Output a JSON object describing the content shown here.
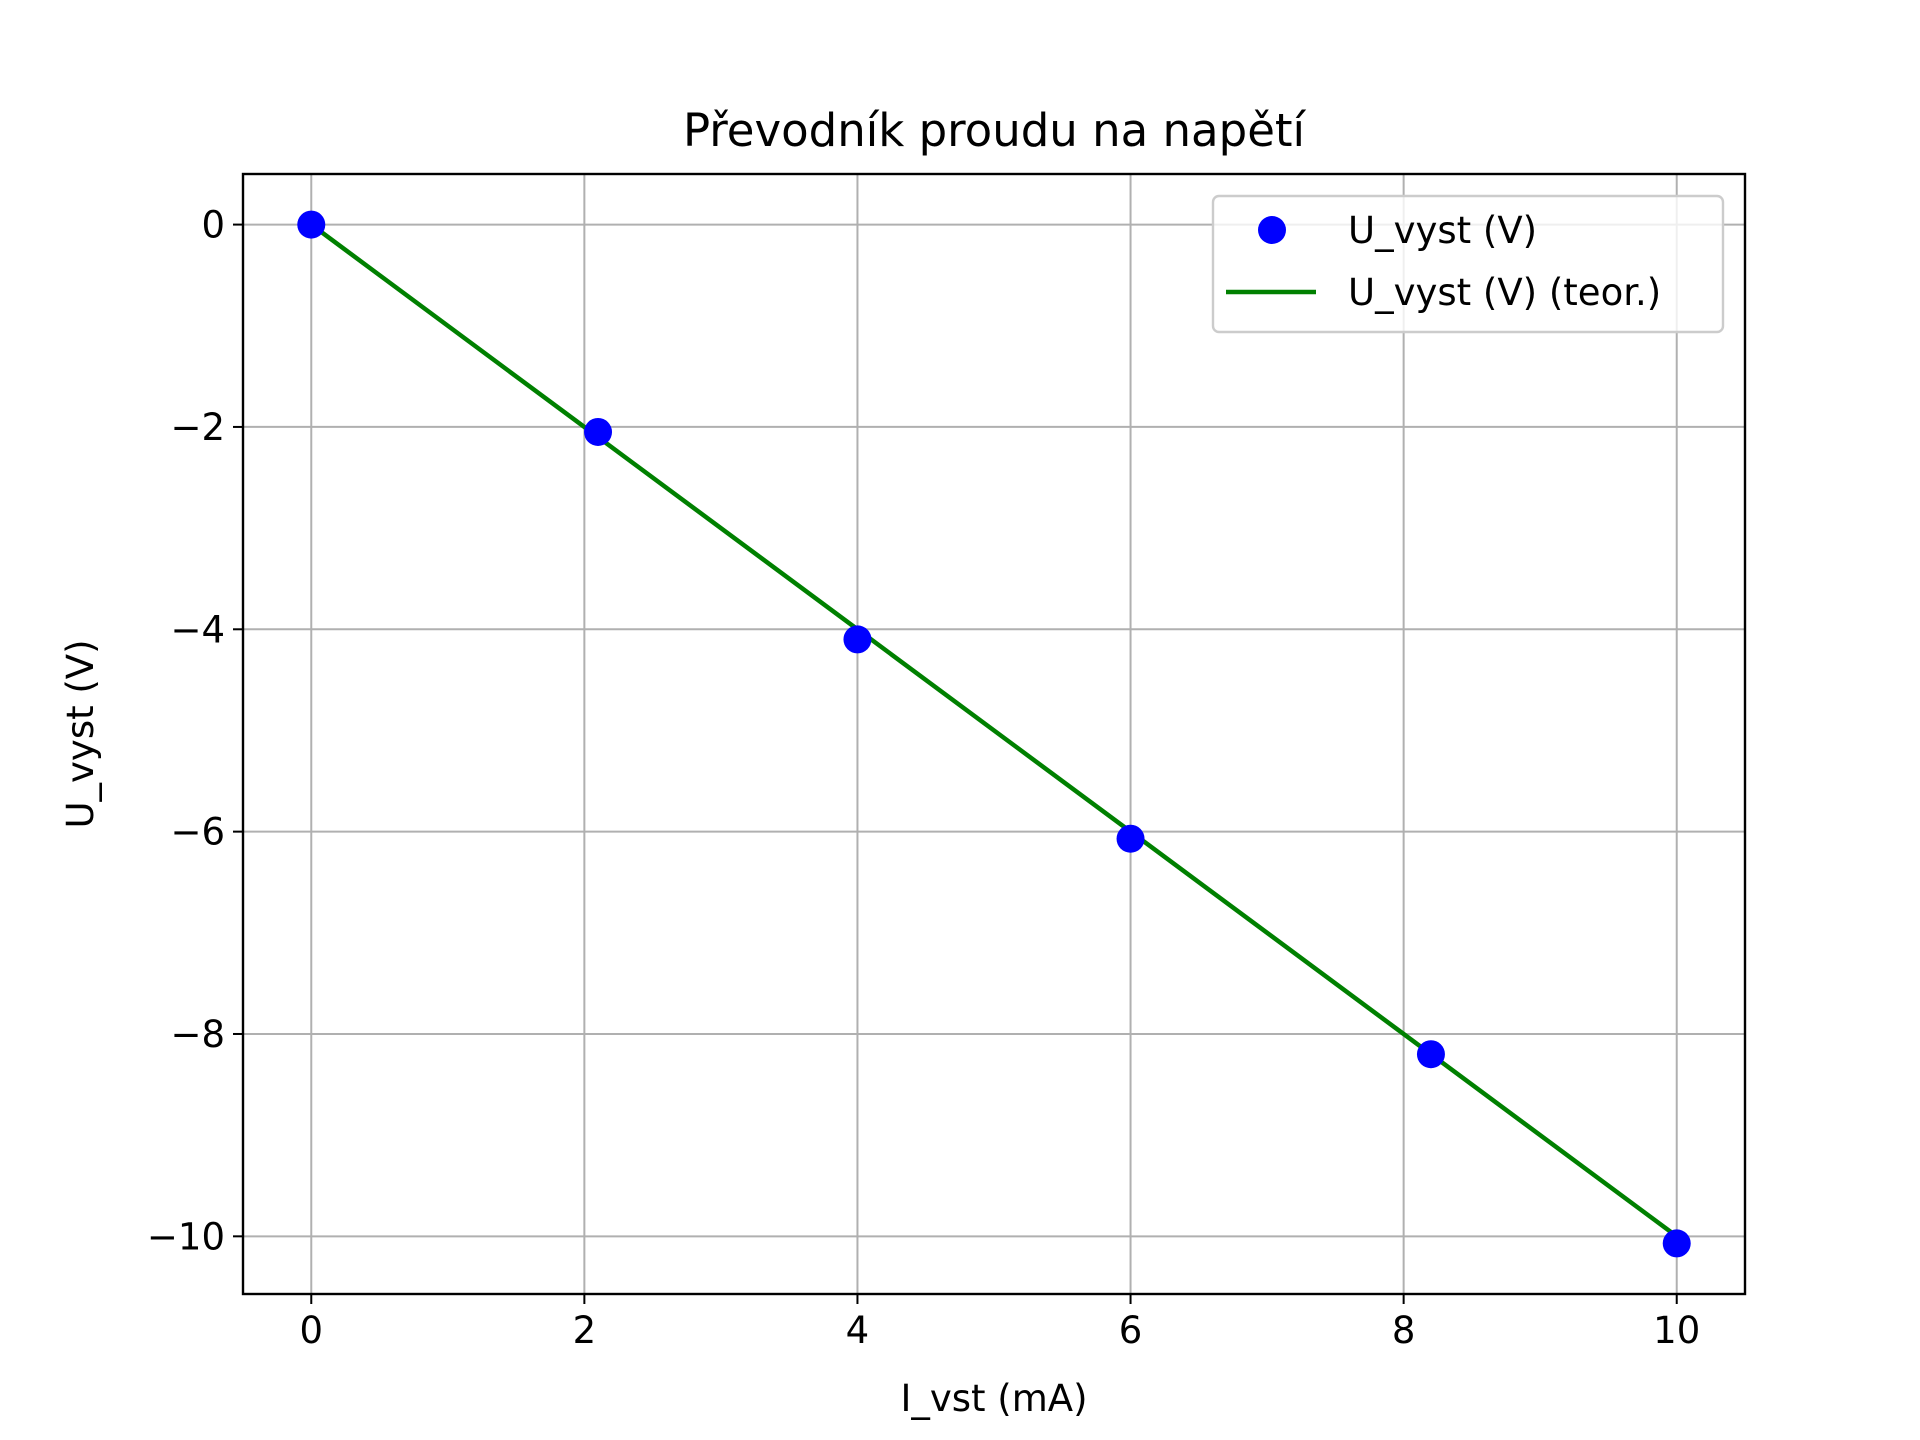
{
  "chart_data": {
    "type": "scatter",
    "title": "Převodník proudu na napětí",
    "xlabel": "I_vst (mA)",
    "ylabel": "U_vyst (V)",
    "xlim": [
      -0.5,
      10.5
    ],
    "ylim": [
      -10.57,
      0.5
    ],
    "xticks": [
      0,
      2,
      4,
      6,
      8,
      10
    ],
    "yticks": [
      0,
      -2,
      -4,
      -6,
      -8,
      -10
    ],
    "xtick_labels": [
      "0",
      "2",
      "4",
      "6",
      "8",
      "10"
    ],
    "ytick_labels": [
      "0",
      "−2",
      "−4",
      "−6",
      "−8",
      "−10"
    ],
    "grid": true,
    "legend_position": "top-right",
    "series": [
      {
        "name": "U_vyst (V)",
        "kind": "scatter",
        "color": "#0000ff",
        "x": [
          0,
          2.1,
          4,
          6,
          8.2,
          10
        ],
        "y": [
          0,
          -2.05,
          -4.1,
          -6.07,
          -8.2,
          -10.07
        ]
      },
      {
        "name": "U_vyst (V) (teor.)",
        "kind": "line",
        "color": "#008000",
        "x": [
          0,
          2.1,
          4,
          6,
          8.2,
          10
        ],
        "y": [
          0,
          -2.1,
          -4,
          -6,
          -8.2,
          -10
        ]
      }
    ]
  }
}
